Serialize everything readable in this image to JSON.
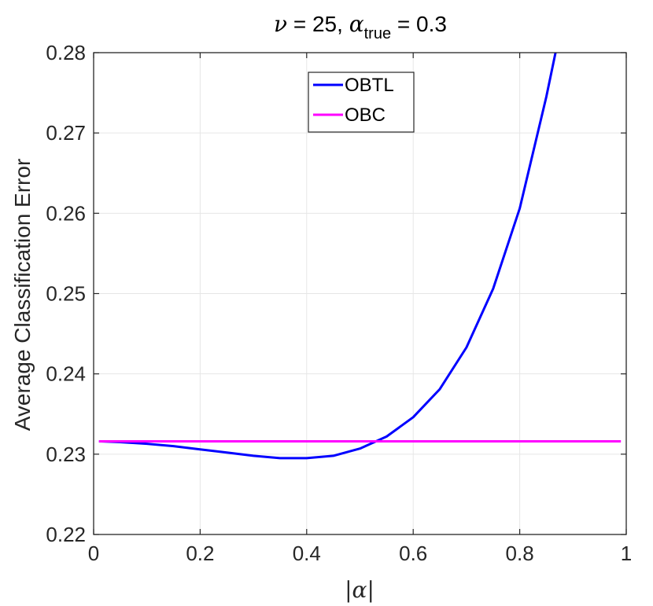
{
  "chart_data": {
    "type": "line",
    "title": {
      "nu_symbol": "ν",
      "nu_value": " = 25, ",
      "alpha_symbol": "α",
      "alpha_subscript": "true",
      "alpha_value": " = 0.3"
    },
    "xlabel": "|α|",
    "ylabel": "Average Classification Error",
    "xlim": [
      0,
      1
    ],
    "ylim": [
      0.22,
      0.28
    ],
    "xticks": [
      0,
      0.2,
      0.4,
      0.6,
      0.8,
      1
    ],
    "xtick_labels": [
      "0",
      "0.2",
      "0.4",
      "0.6",
      "0.8",
      "1"
    ],
    "yticks": [
      0.22,
      0.23,
      0.24,
      0.25,
      0.26,
      0.27,
      0.28
    ],
    "ytick_labels": [
      "0.22",
      "0.23",
      "0.24",
      "0.25",
      "0.26",
      "0.27",
      "0.28"
    ],
    "grid": true,
    "legend_position": "top-center",
    "series": [
      {
        "name": "OBTL",
        "color": "#0000ff",
        "x": [
          0.01,
          0.05,
          0.1,
          0.15,
          0.2,
          0.25,
          0.3,
          0.35,
          0.4,
          0.45,
          0.5,
          0.55,
          0.6,
          0.65,
          0.7,
          0.75,
          0.8,
          0.85,
          0.875
        ],
        "y": [
          0.2316,
          0.2315,
          0.2313,
          0.231,
          0.2306,
          0.2302,
          0.2298,
          0.2295,
          0.2295,
          0.2298,
          0.2307,
          0.2322,
          0.2346,
          0.2381,
          0.2433,
          0.2506,
          0.2606,
          0.2745,
          0.2825
        ]
      },
      {
        "name": "OBC",
        "color": "#ff00ff",
        "x": [
          0.01,
          0.99
        ],
        "y": [
          0.2316,
          0.2316
        ]
      }
    ]
  }
}
